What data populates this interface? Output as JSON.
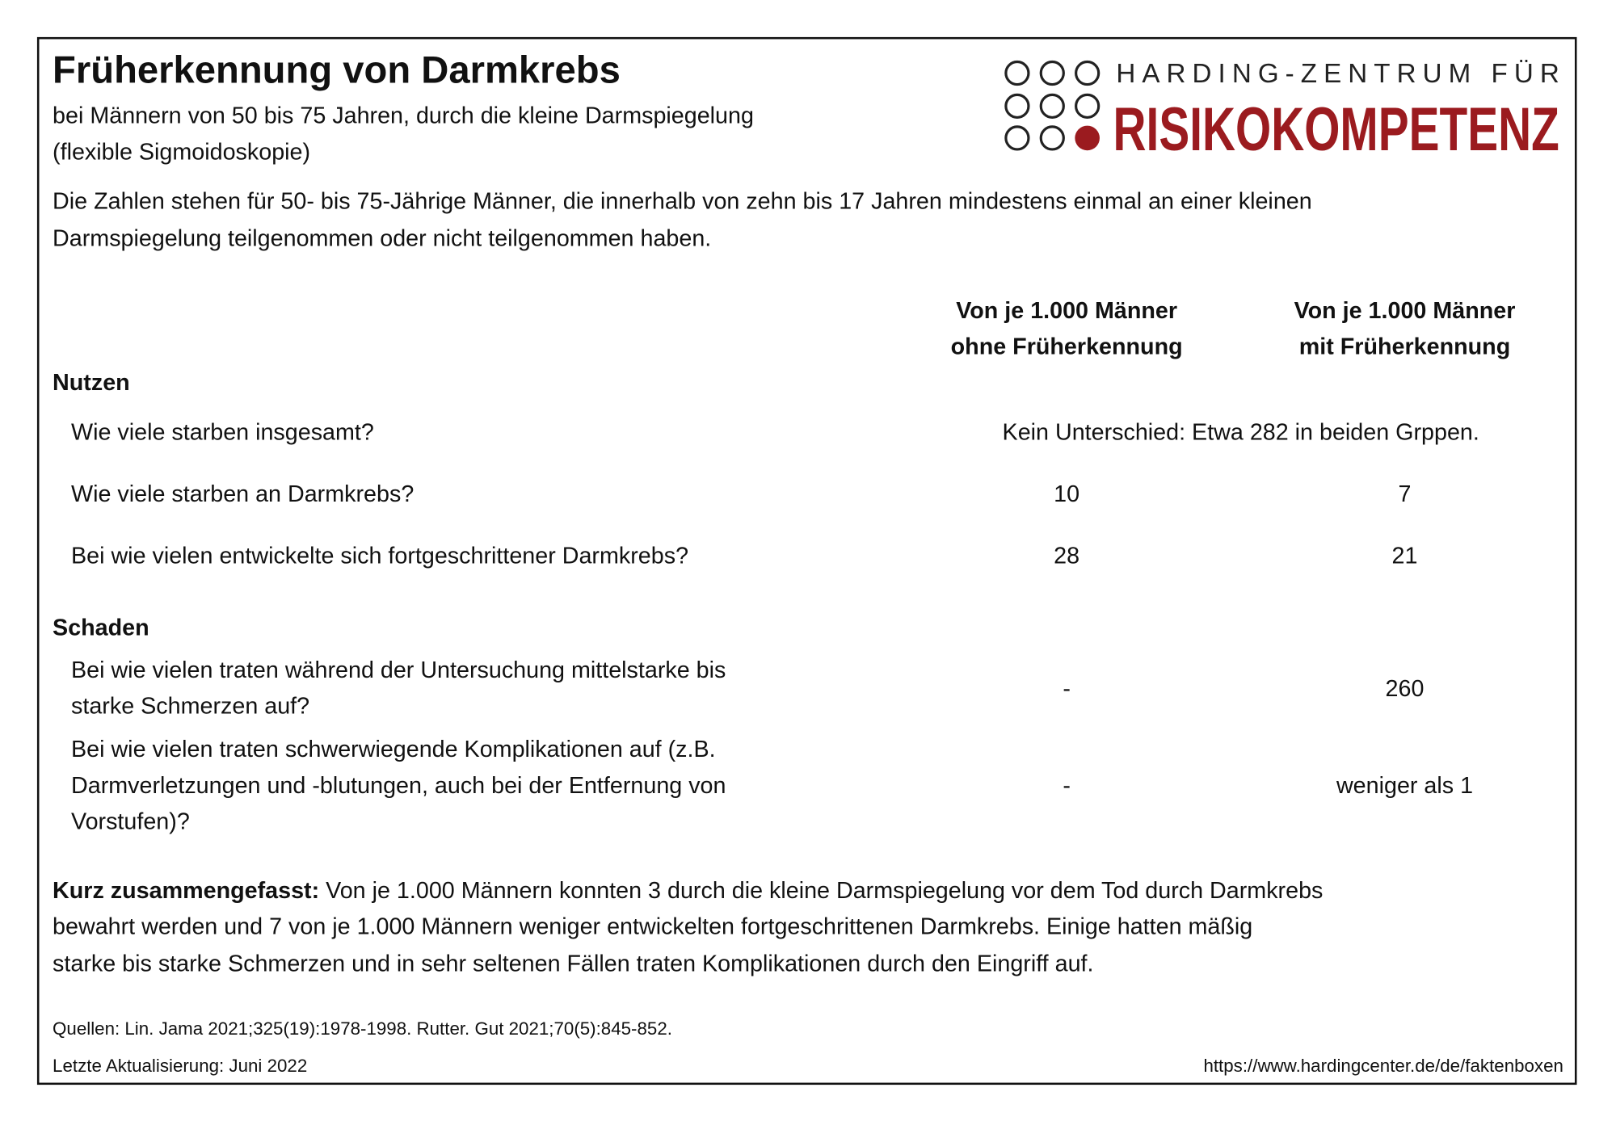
{
  "title": "Früherkennung von Darmkrebs",
  "subtitle": [
    "bei Männern von 50 bis 75 Jahren, durch die kleine Darmspiegelung",
    "(flexible Sigmoidoskopie)"
  ],
  "logo": {
    "line1": "HARDING-ZENTRUM FÜR",
    "line2": "RISIKOKOMPETENZ",
    "color": "#9b1b1f"
  },
  "intro": [
    "Die Zahlen stehen für 50- bis 75-Jährige Männer, die innerhalb von zehn bis 17 Jahren mindestens einmal an einer kleinen",
    "Darmspiegelung teilgenommen oder nicht teilgenommen haben."
  ],
  "columns": [
    {
      "line1": "Von je 1.000 Männer",
      "line2": "ohne Früherkennung"
    },
    {
      "line1": "Von je 1.000 Männer",
      "line2": "mit Früherkennung"
    }
  ],
  "benefit": {
    "heading": "Nutzen",
    "rows": [
      {
        "question": "Wie viele starben insgesamt?",
        "merged": "Kein Unterschied: Etwa 282 in beiden Grppen."
      },
      {
        "question": "Wie viele starben an Darmkrebs?",
        "without": "10",
        "with": "7"
      },
      {
        "question": "Bei wie vielen entwickelte sich fortgeschrittener Darmkrebs?",
        "without": "28",
        "with": "21"
      }
    ]
  },
  "harm": {
    "heading": "Schaden",
    "rows": [
      {
        "question": [
          "Bei wie vielen traten während der Untersuchung mittelstarke bis",
          "starke Schmerzen auf?"
        ],
        "without": "-",
        "with": "260"
      },
      {
        "question": [
          "Bei wie vielen traten schwerwiegende Komplikationen auf (z.B.",
          "Darmverletzungen und -blutungen, auch bei der Entfernung von",
          "Vorstufen)?"
        ],
        "without": "-",
        "with": "weniger als 1"
      }
    ]
  },
  "summary": {
    "label": "Kurz zusammengefasst:",
    "lines": [
      " Von je 1.000 Männern konnten 3 durch die kleine Darmspiegelung vor dem Tod durch Darmkrebs",
      "bewahrt werden und 7 von je 1.000 Männern weniger entwickelten fortgeschrittenen Darmkrebs. Einige hatten mäßig",
      "starke bis starke Schmerzen und in sehr seltenen Fällen traten Komplikationen durch den Eingriff auf."
    ]
  },
  "footer": {
    "sources": "Quellen: Lin. Jama 2021;325(19):1978-1998. Rutter. Gut 2021;70(5):845-852.",
    "updated": "Letzte Aktualisierung: Juni 2022",
    "url": "https://www.hardingcenter.de/de/faktenboxen"
  }
}
